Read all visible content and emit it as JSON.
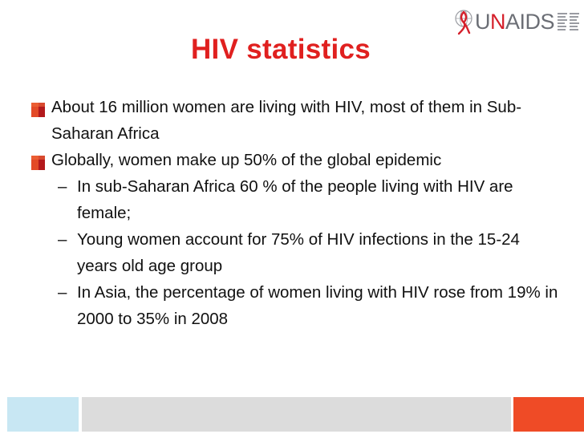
{
  "logo": {
    "wordmark_u": "U",
    "wordmark_n": "N",
    "wordmark_rest": "AIDS",
    "icon": "unaids-ribbon-globe-icon"
  },
  "title": "HIV statistics",
  "bullets": [
    {
      "level": 1,
      "text": "About 16 million women are living with HIV, most of them in Sub-Saharan Africa"
    },
    {
      "level": 1,
      "text": "Globally, women make up 50% of the global epidemic"
    },
    {
      "level": 2,
      "marker": "–",
      "text": "In sub-Saharan Africa 60 % of the people living with HIV are female;"
    },
    {
      "level": 2,
      "marker": "–",
      "text": "Young women account for 75% of HIV infections in the 15-24 years old age group"
    },
    {
      "level": 2,
      "marker": "–",
      "text": "In Asia, the percentage of women living with HIV rose from 19% in 2000 to 35% in 2008"
    }
  ],
  "colors": {
    "title": "#e0201f",
    "footer_left": "#c8e7f3",
    "footer_middle": "#dcdcdc",
    "footer_right": "#ef4b26",
    "bullet_marker": "#d52b1e"
  }
}
